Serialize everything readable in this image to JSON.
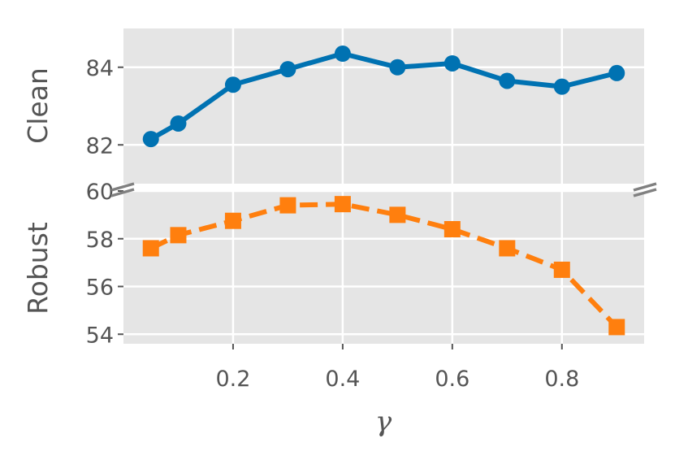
{
  "chart_data": {
    "type": "line",
    "x": [
      0.05,
      0.1,
      0.2,
      0.3,
      0.4,
      0.5,
      0.6,
      0.7,
      0.8,
      0.9
    ],
    "xlabel": "γ",
    "xticks": [
      "0.2",
      "0.4",
      "0.6",
      "0.8"
    ],
    "xtick_values": [
      0.2,
      0.4,
      0.6,
      0.8
    ],
    "xlim": [
      0.0,
      0.95
    ],
    "grid": true,
    "broken_axis": true,
    "panels": [
      {
        "ylabel": "Clean",
        "ylim": [
          81.0,
          85.0
        ],
        "yticks": [
          "82",
          "84"
        ],
        "ytick_values": [
          82,
          84
        ],
        "series": [
          {
            "values": [
              82.15,
              82.55,
              83.55,
              83.95,
              84.35,
              84.0,
              84.1,
              83.65,
              83.5,
              83.85
            ],
            "color": "#0072B2",
            "marker": "circle",
            "linestyle": "solid"
          }
        ]
      },
      {
        "ylabel": "Robust",
        "ylim": [
          53.6,
          60.0
        ],
        "yticks": [
          "54",
          "56",
          "58",
          "60"
        ],
        "ytick_values": [
          54,
          56,
          58,
          60
        ],
        "series": [
          {
            "values": [
              57.6,
              58.15,
              58.75,
              59.4,
              59.45,
              59.0,
              58.4,
              57.6,
              56.7,
              54.3
            ],
            "color": "#FF7F0E",
            "marker": "square",
            "linestyle": "dashed"
          }
        ]
      }
    ]
  }
}
